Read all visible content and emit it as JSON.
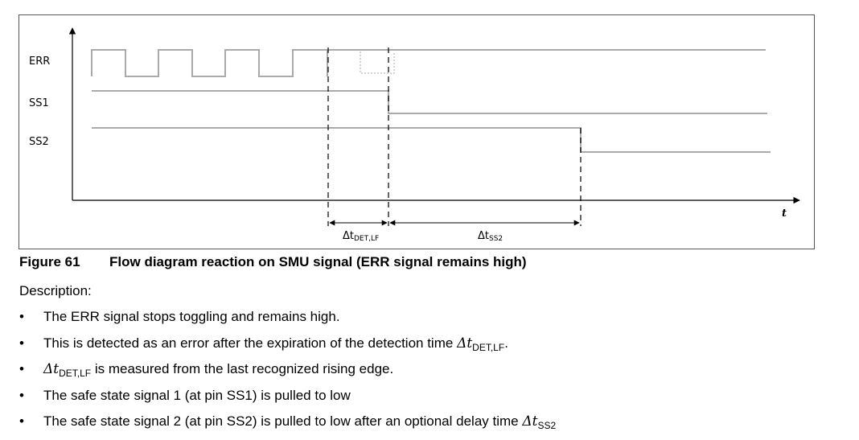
{
  "figure": {
    "signals": [
      "ERR",
      "SS1",
      "SS2"
    ],
    "time_axis_label": "t",
    "delta_labels": [
      {
        "symbol": "Δt",
        "subscript": "DET,LF"
      },
      {
        "symbol": "Δt",
        "subscript": "SS2"
      }
    ],
    "caption_number": "Figure 61",
    "caption_title": "Flow diagram reaction on SMU signal (ERR signal remains high)"
  },
  "description": {
    "heading": "Description:",
    "bullets": [
      {
        "text": "The ERR signal stops toggling and remains high."
      },
      {
        "text": "This is detected as an error after the expiration of the detection time ",
        "math": "Δt",
        "sub": "DET,LF",
        "after": "."
      },
      {
        "math": "Δt",
        "sub": "DET,LF",
        "after": " is measured from the last recognized rising edge."
      },
      {
        "text": "The safe state signal 1 (at pin SS1) is pulled to low"
      },
      {
        "text": "The safe state signal 2 (at pin SS2) is pulled to low after an optional delay time ",
        "math": "Δt",
        "sub": "SS2",
        "after": ""
      }
    ],
    "bullet_char": "•"
  }
}
